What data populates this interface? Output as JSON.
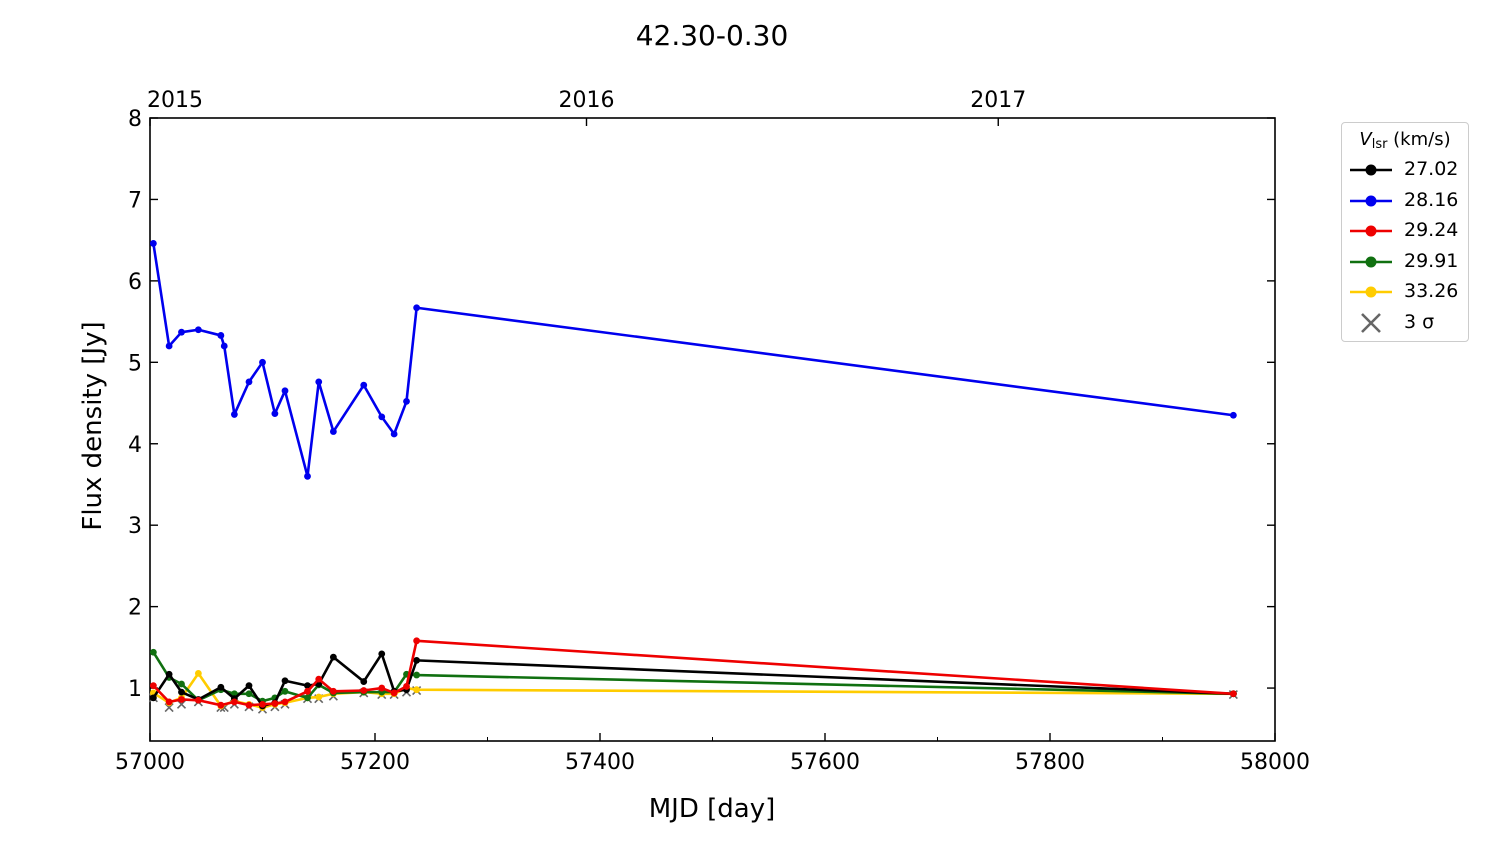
{
  "chart_data": {
    "type": "line",
    "title": "42.30-0.30",
    "xlabel": "MJD [day]",
    "ylabel": "Flux density [Jy]",
    "xlim": [
      57000,
      58000
    ],
    "ylim": [
      0.35,
      8
    ],
    "xticks": [
      "57000",
      "57200",
      "57400",
      "57600",
      "57800",
      "58000"
    ],
    "yticks": [
      "1",
      "2",
      "3",
      "4",
      "5",
      "6",
      "7",
      "8"
    ],
    "top_axis_labels": [
      {
        "x": 57000,
        "label": "2015"
      },
      {
        "x": 57388,
        "label": "2016"
      },
      {
        "x": 57754,
        "label": "2017"
      }
    ],
    "legend": {
      "title": "V",
      "title_sub": "lsr",
      "title_unit": " (km/s)",
      "position": "outside-right",
      "sigma_label": "3 σ"
    },
    "series": [
      {
        "name": "27.02",
        "color": "#000000",
        "x": [
          57003,
          57017,
          57028,
          57043,
          57063,
          57075,
          57088,
          57100,
          57111,
          57120,
          57140,
          57150,
          57163,
          57190,
          57206,
          57217,
          57228,
          57237,
          57963
        ],
        "y": [
          0.88,
          1.17,
          0.95,
          0.86,
          1.01,
          0.87,
          1.03,
          0.78,
          0.82,
          1.09,
          1.03,
          1.05,
          1.38,
          1.08,
          1.42,
          0.96,
          0.98,
          1.34,
          0.93
        ]
      },
      {
        "name": "28.16",
        "color": "#0000ee",
        "x": [
          57003,
          57017,
          57028,
          57043,
          57063,
          57066,
          57075,
          57088,
          57100,
          57111,
          57120,
          57140,
          57150,
          57163,
          57190,
          57206,
          57217,
          57228,
          57237,
          57963
        ],
        "y": [
          6.46,
          5.2,
          5.37,
          5.4,
          5.33,
          5.2,
          4.36,
          4.76,
          5.0,
          4.37,
          4.65,
          3.6,
          4.76,
          4.15,
          4.72,
          4.33,
          4.12,
          4.52,
          5.67,
          4.35
        ]
      },
      {
        "name": "29.24",
        "color": "#ee0000",
        "x": [
          57003,
          57017,
          57028,
          57043,
          57063,
          57075,
          57088,
          57100,
          57111,
          57120,
          57140,
          57150,
          57163,
          57190,
          57206,
          57217,
          57228,
          57237,
          57963
        ],
        "y": [
          1.03,
          0.83,
          0.86,
          0.85,
          0.79,
          0.83,
          0.79,
          0.8,
          0.81,
          0.83,
          0.96,
          1.11,
          0.96,
          0.97,
          1.0,
          0.94,
          1.02,
          1.58,
          0.93
        ]
      },
      {
        "name": "29.91",
        "color": "#107010",
        "x": [
          57003,
          57017,
          57028,
          57043,
          57063,
          57075,
          57088,
          57100,
          57111,
          57120,
          57140,
          57150,
          57163,
          57190,
          57206,
          57217,
          57228,
          57237,
          57963
        ],
        "y": [
          1.44,
          1.13,
          1.05,
          0.85,
          0.98,
          0.93,
          0.93,
          0.84,
          0.88,
          0.96,
          0.88,
          1.04,
          0.94,
          0.95,
          0.95,
          0.95,
          1.17,
          1.16,
          0.93
        ]
      },
      {
        "name": "33.26",
        "color": "#ffcc00",
        "x": [
          57003,
          57017,
          57028,
          57043,
          57063,
          57075,
          57088,
          57100,
          57111,
          57120,
          57140,
          57150,
          57163,
          57190,
          57206,
          57217,
          57228,
          57237,
          57963
        ],
        "y": [
          0.94,
          0.82,
          0.88,
          1.18,
          0.78,
          0.84,
          0.8,
          0.76,
          0.8,
          0.82,
          0.88,
          0.89,
          0.93,
          0.95,
          0.93,
          0.93,
          1.0,
          0.98,
          0.93
        ]
      }
    ],
    "sigma": {
      "name": "3 σ",
      "color": "#666666",
      "x": [
        57003,
        57017,
        57028,
        57043,
        57063,
        57066,
        57075,
        57088,
        57100,
        57111,
        57120,
        57140,
        57150,
        57163,
        57190,
        57206,
        57217,
        57228,
        57237,
        57963
      ],
      "y": [
        0.88,
        0.76,
        0.8,
        0.83,
        0.76,
        0.76,
        0.8,
        0.77,
        0.74,
        0.77,
        0.8,
        0.87,
        0.87,
        0.9,
        0.94,
        0.92,
        0.92,
        0.95,
        0.97,
        0.92
      ]
    }
  }
}
